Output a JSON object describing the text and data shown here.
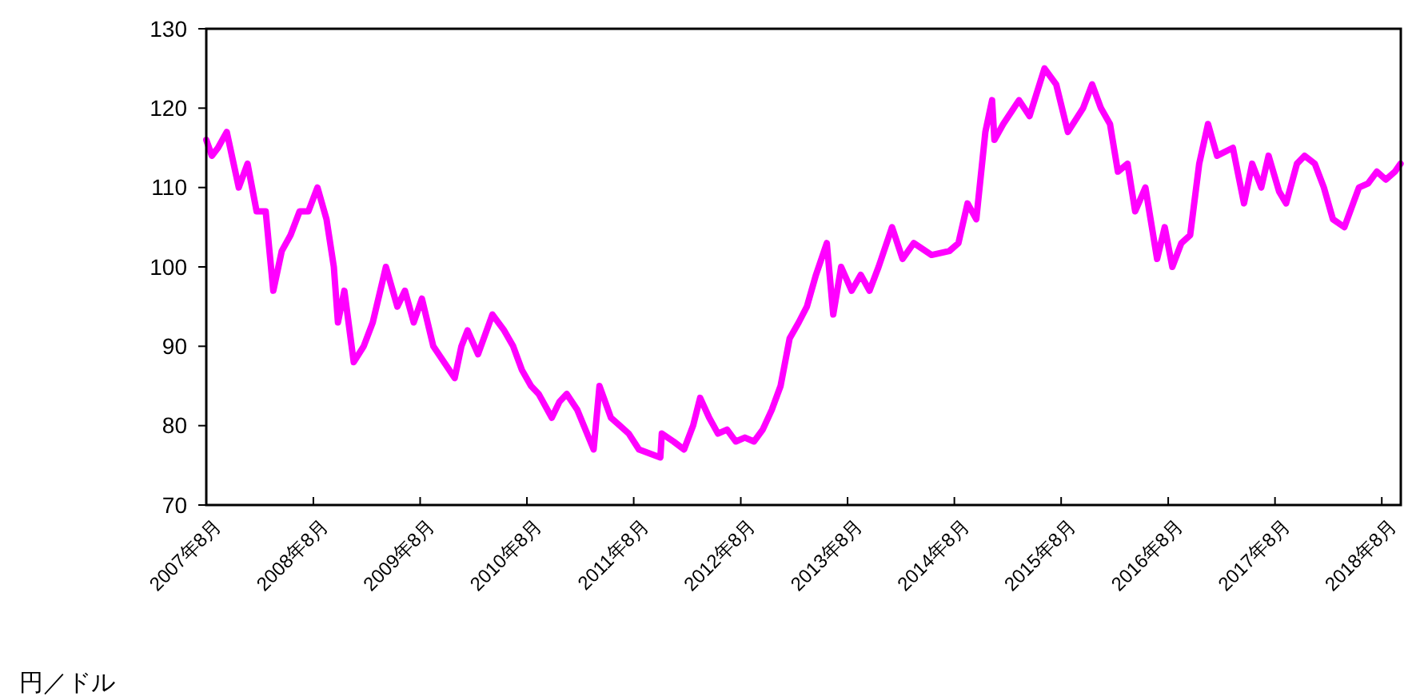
{
  "chart_data": {
    "type": "line",
    "ylabel": "円／ドル",
    "xlim": [
      "2007-08-01",
      "2018-10-05"
    ],
    "ylim": [
      70,
      130
    ],
    "yticks": [
      70,
      80,
      90,
      100,
      110,
      120,
      130
    ],
    "xticks": [
      {
        "value": "2007-08",
        "label": "2007年8月"
      },
      {
        "value": "2008-08",
        "label": "2008年8月"
      },
      {
        "value": "2009-08",
        "label": "2009年8月"
      },
      {
        "value": "2010-08",
        "label": "2010年8月"
      },
      {
        "value": "2011-08",
        "label": "2011年8月"
      },
      {
        "value": "2012-08",
        "label": "2012年8月"
      },
      {
        "value": "2013-08",
        "label": "2013年8月"
      },
      {
        "value": "2014-08",
        "label": "2014年8月"
      },
      {
        "value": "2015-08",
        "label": "2015年8月"
      },
      {
        "value": "2016-08",
        "label": "2016年8月"
      },
      {
        "value": "2017-08",
        "label": "2017年8月"
      },
      {
        "value": "2018-08",
        "label": "2018年8月"
      }
    ],
    "grid": false,
    "marker": "none",
    "line_style": "solid",
    "x": [
      "2007-08-01",
      "2007-08-20",
      "2007-09-10",
      "2007-10-10",
      "2007-11-20",
      "2007-12-20",
      "2008-01-20",
      "2008-02-20",
      "2008-03-17",
      "2008-04-15",
      "2008-05-15",
      "2008-06-15",
      "2008-07-15",
      "2008-08-15",
      "2008-09-15",
      "2008-10-10",
      "2008-10-24",
      "2008-11-15",
      "2008-12-17",
      "2009-01-20",
      "2009-02-20",
      "2009-04-06",
      "2009-05-15",
      "2009-06-10",
      "2009-07-10",
      "2009-08-07",
      "2009-09-15",
      "2009-11-27",
      "2009-12-20",
      "2010-01-10",
      "2010-02-15",
      "2010-04-05",
      "2010-05-15",
      "2010-06-15",
      "2010-07-15",
      "2010-08-15",
      "2010-09-10",
      "2010-10-25",
      "2010-11-20",
      "2010-12-15",
      "2011-01-20",
      "2011-03-17",
      "2011-04-06",
      "2011-05-15",
      "2011-06-15",
      "2011-07-15",
      "2011-08-19",
      "2011-10-31",
      "2011-11-05",
      "2011-12-15",
      "2012-01-20",
      "2012-02-20",
      "2012-03-15",
      "2012-04-15",
      "2012-05-15",
      "2012-06-15",
      "2012-07-15",
      "2012-08-15",
      "2012-09-15",
      "2012-10-15",
      "2012-11-15",
      "2012-12-15",
      "2013-01-15",
      "2013-02-15",
      "2013-03-15",
      "2013-04-15",
      "2013-05-22",
      "2013-06-13",
      "2013-07-10",
      "2013-08-15",
      "2013-09-15",
      "2013-10-15",
      "2013-11-15",
      "2013-12-31",
      "2014-02-05",
      "2014-03-15",
      "2014-05-15",
      "2014-07-15",
      "2014-08-15",
      "2014-09-15",
      "2014-10-15",
      "2014-11-15",
      "2014-12-08",
      "2014-12-16",
      "2015-01-15",
      "2015-03-10",
      "2015-04-15",
      "2015-06-05",
      "2015-07-15",
      "2015-08-24",
      "2015-10-15",
      "2015-11-15",
      "2015-12-15",
      "2016-01-15",
      "2016-02-11",
      "2016-03-15",
      "2016-04-10",
      "2016-05-15",
      "2016-06-24",
      "2016-07-20",
      "2016-08-15",
      "2016-09-15",
      "2016-10-15",
      "2016-11-15",
      "2016-12-15",
      "2017-01-15",
      "2017-03-10",
      "2017-04-17",
      "2017-05-15",
      "2017-06-15",
      "2017-07-10",
      "2017-08-15",
      "2017-09-08",
      "2017-10-15",
      "2017-11-10",
      "2017-12-15",
      "2018-01-15",
      "2018-02-15",
      "2018-03-26",
      "2018-05-15",
      "2018-06-15",
      "2018-07-15",
      "2018-08-15",
      "2018-09-15",
      "2018-10-04"
    ],
    "series": [
      {
        "color": "#ff00ff",
        "values": [
          116,
          114,
          115,
          117,
          110,
          113,
          107,
          107,
          97,
          102,
          104,
          107,
          107,
          110,
          106,
          100,
          93,
          97,
          88,
          90,
          93,
          100,
          95,
          97,
          93,
          96,
          90,
          86,
          90,
          92,
          89,
          94,
          92,
          90,
          87,
          85,
          84,
          81,
          83,
          84,
          82,
          77,
          85,
          81,
          80,
          79,
          77,
          76,
          79,
          78,
          77,
          80,
          83.5,
          81,
          79,
          79.5,
          78,
          78.5,
          78,
          79.5,
          82,
          85,
          91,
          93,
          95,
          99,
          103,
          94,
          100,
          97,
          99,
          97,
          100,
          105,
          101,
          103,
          101.5,
          102,
          103,
          108,
          106,
          117,
          121,
          116,
          118,
          121,
          119,
          125,
          123,
          117,
          120,
          123,
          120,
          118,
          112,
          113,
          107,
          110,
          101,
          105,
          100,
          103,
          104,
          113,
          118,
          114,
          115,
          108,
          113,
          110,
          114,
          109.5,
          108,
          113,
          114,
          113,
          110,
          106,
          105,
          110,
          110.5,
          112,
          111,
          112,
          113
        ]
      }
    ]
  }
}
